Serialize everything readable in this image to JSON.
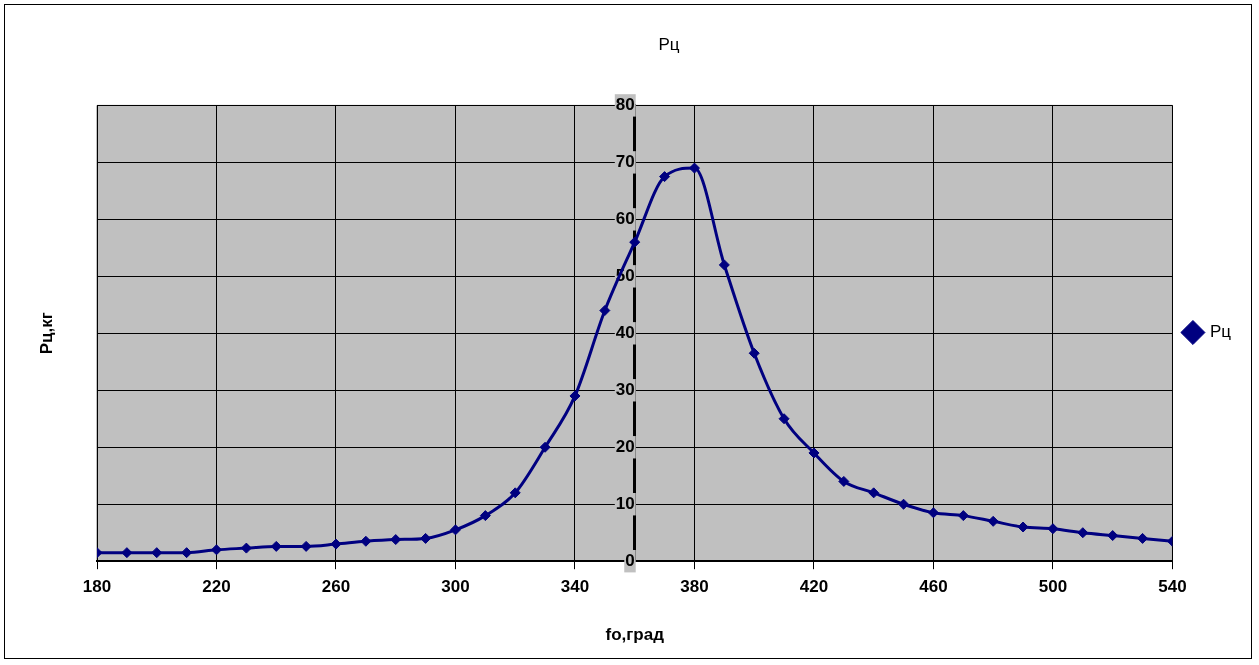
{
  "chart_data": {
    "type": "line",
    "title": "Рц",
    "xlabel": "fo,град",
    "ylabel": "Рц,кг",
    "x": [
      180,
      190,
      200,
      210,
      220,
      230,
      240,
      250,
      260,
      270,
      280,
      290,
      300,
      310,
      320,
      330,
      340,
      350,
      360,
      370,
      380,
      390,
      400,
      410,
      420,
      430,
      440,
      450,
      460,
      470,
      480,
      490,
      500,
      510,
      520,
      530,
      540
    ],
    "series": [
      {
        "name": "Рц",
        "color": "#000080",
        "values": [
          1.5,
          1.5,
          1.5,
          1.5,
          2,
          2.3,
          2.6,
          2.6,
          3,
          3.5,
          3.8,
          4,
          5.5,
          8,
          12,
          20,
          29,
          44,
          56,
          67.5,
          69,
          52,
          36.5,
          25,
          19,
          14,
          12,
          10,
          8.5,
          8,
          7,
          6,
          5.7,
          5,
          4.5,
          4,
          3.5
        ]
      }
    ],
    "xlim": [
      180,
      540
    ],
    "xticks": [
      180,
      220,
      260,
      300,
      340,
      380,
      420,
      460,
      500,
      540
    ],
    "ylim": [
      0,
      80
    ],
    "yticks": [
      0,
      10,
      20,
      30,
      40,
      50,
      60,
      70,
      80
    ],
    "grid": true,
    "legend": "right",
    "marker": "diamond",
    "line_style": "solid"
  }
}
